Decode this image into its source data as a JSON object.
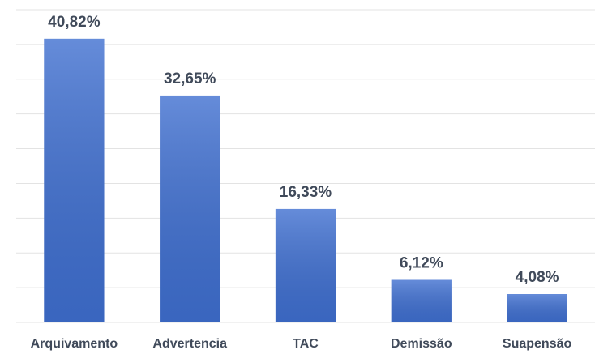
{
  "chart_data": {
    "type": "bar",
    "categories": [
      "Arquivamento",
      "Advertencia",
      "TAC",
      "Demissão",
      "Suapensão"
    ],
    "values": [
      40.82,
      32.65,
      16.33,
      6.12,
      4.08
    ],
    "value_labels": [
      "40,82%",
      "32,65%",
      "16,33%",
      "6,12%",
      "4,08%"
    ],
    "color": "#3f6fd0",
    "ylim": [
      0,
      45
    ],
    "yticks": [
      0,
      5,
      10,
      15,
      20,
      25,
      30,
      35,
      40,
      45
    ],
    "grid": true
  }
}
